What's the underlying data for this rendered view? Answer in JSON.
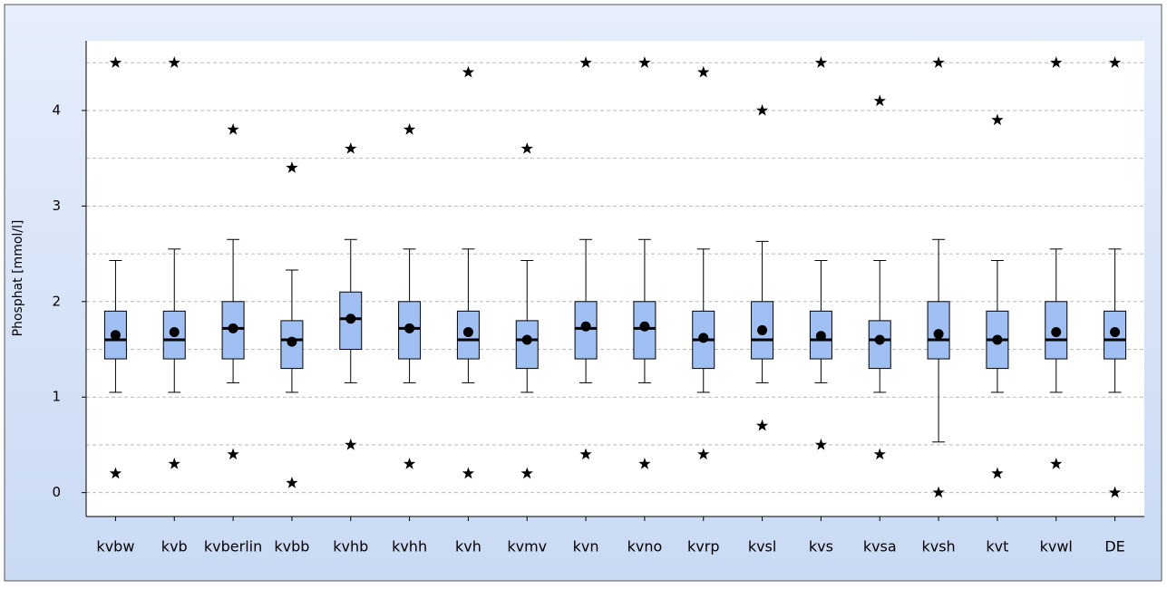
{
  "chart_data": {
    "type": "box",
    "y_label": "Phosphat [mmol/l]",
    "categories": [
      "kvbw",
      "kvb",
      "kvberlin",
      "kvbb",
      "kvhb",
      "kvhh",
      "kvh",
      "kvmv",
      "kvn",
      "kvno",
      "kvrp",
      "kvsl",
      "kvs",
      "kvsa",
      "kvsh",
      "kvt",
      "kvwl",
      "DE"
    ],
    "whisker_low": [
      1.05,
      1.05,
      1.15,
      1.05,
      1.15,
      1.15,
      1.15,
      1.05,
      1.15,
      1.15,
      1.05,
      1.15,
      1.15,
      1.05,
      0.53,
      1.05,
      1.05,
      1.05
    ],
    "q1": [
      1.4,
      1.4,
      1.4,
      1.3,
      1.5,
      1.4,
      1.4,
      1.3,
      1.4,
      1.4,
      1.3,
      1.4,
      1.4,
      1.3,
      1.4,
      1.3,
      1.4,
      1.4
    ],
    "median": [
      1.6,
      1.6,
      1.72,
      1.6,
      1.82,
      1.72,
      1.6,
      1.6,
      1.72,
      1.72,
      1.6,
      1.6,
      1.6,
      1.6,
      1.6,
      1.6,
      1.6,
      1.6
    ],
    "q3": [
      1.9,
      1.9,
      2.0,
      1.8,
      2.1,
      2.0,
      1.9,
      1.8,
      2.0,
      2.0,
      1.9,
      2.0,
      1.9,
      1.8,
      2.0,
      1.9,
      2.0,
      1.9
    ],
    "whisker_high": [
      2.43,
      2.55,
      2.65,
      2.33,
      2.65,
      2.55,
      2.55,
      2.43,
      2.65,
      2.65,
      2.55,
      2.63,
      2.43,
      2.43,
      2.65,
      2.43,
      2.55,
      2.55
    ],
    "mean": [
      1.65,
      1.68,
      1.72,
      1.58,
      1.82,
      1.72,
      1.68,
      1.6,
      1.74,
      1.74,
      1.62,
      1.7,
      1.64,
      1.6,
      1.66,
      1.6,
      1.68,
      1.68
    ],
    "min": [
      0.2,
      0.3,
      0.4,
      0.1,
      0.5,
      0.3,
      0.2,
      0.2,
      0.4,
      0.3,
      0.4,
      0.7,
      0.5,
      0.4,
      0.0,
      0.2,
      0.3,
      0.0
    ],
    "max": [
      4.5,
      4.5,
      3.8,
      3.4,
      3.6,
      3.8,
      4.4,
      3.6,
      4.5,
      4.5,
      4.4,
      4.0,
      4.5,
      4.1,
      4.5,
      3.9,
      4.5,
      4.5
    ],
    "box_color": "#a0c0f4",
    "ylim": [
      -0.25,
      4.73
    ],
    "yticks": [
      0,
      1,
      2,
      3,
      4
    ],
    "grid_lines": [
      0,
      0.5,
      1,
      1.5,
      2,
      2.5,
      3,
      3.5,
      4,
      4.5
    ]
  }
}
